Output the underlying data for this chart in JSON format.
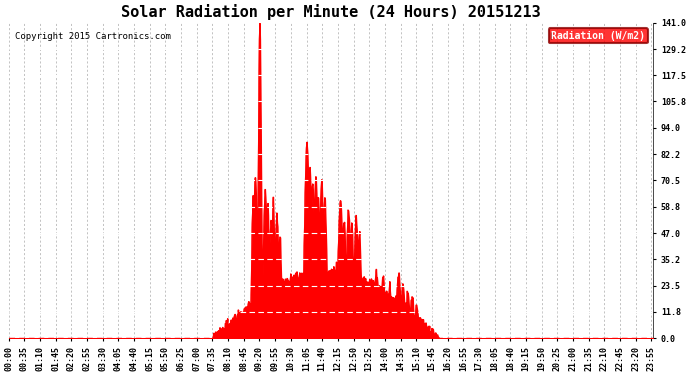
{
  "title": "Solar Radiation per Minute (24 Hours) 20151213",
  "copyright": "Copyright 2015 Cartronics.com",
  "legend_label": "Radiation (W/m2)",
  "background_color": "#ffffff",
  "plot_bg_color": "#ffffff",
  "fill_color": "#ff0000",
  "line_color": "#ff0000",
  "dashed_line_color": "#ffffff",
  "bottom_line_color": "#ff0000",
  "grid_color": "#aaaaaa",
  "ylim": [
    0.0,
    141.0
  ],
  "yticks": [
    0.0,
    11.8,
    23.5,
    35.2,
    47.0,
    58.8,
    70.5,
    82.2,
    94.0,
    105.8,
    117.5,
    129.2,
    141.0
  ],
  "title_fontsize": 11,
  "copyright_fontsize": 6.5,
  "tick_fontsize": 6,
  "legend_fontsize": 7,
  "num_minutes": 1440,
  "tick_interval_minutes": 35
}
